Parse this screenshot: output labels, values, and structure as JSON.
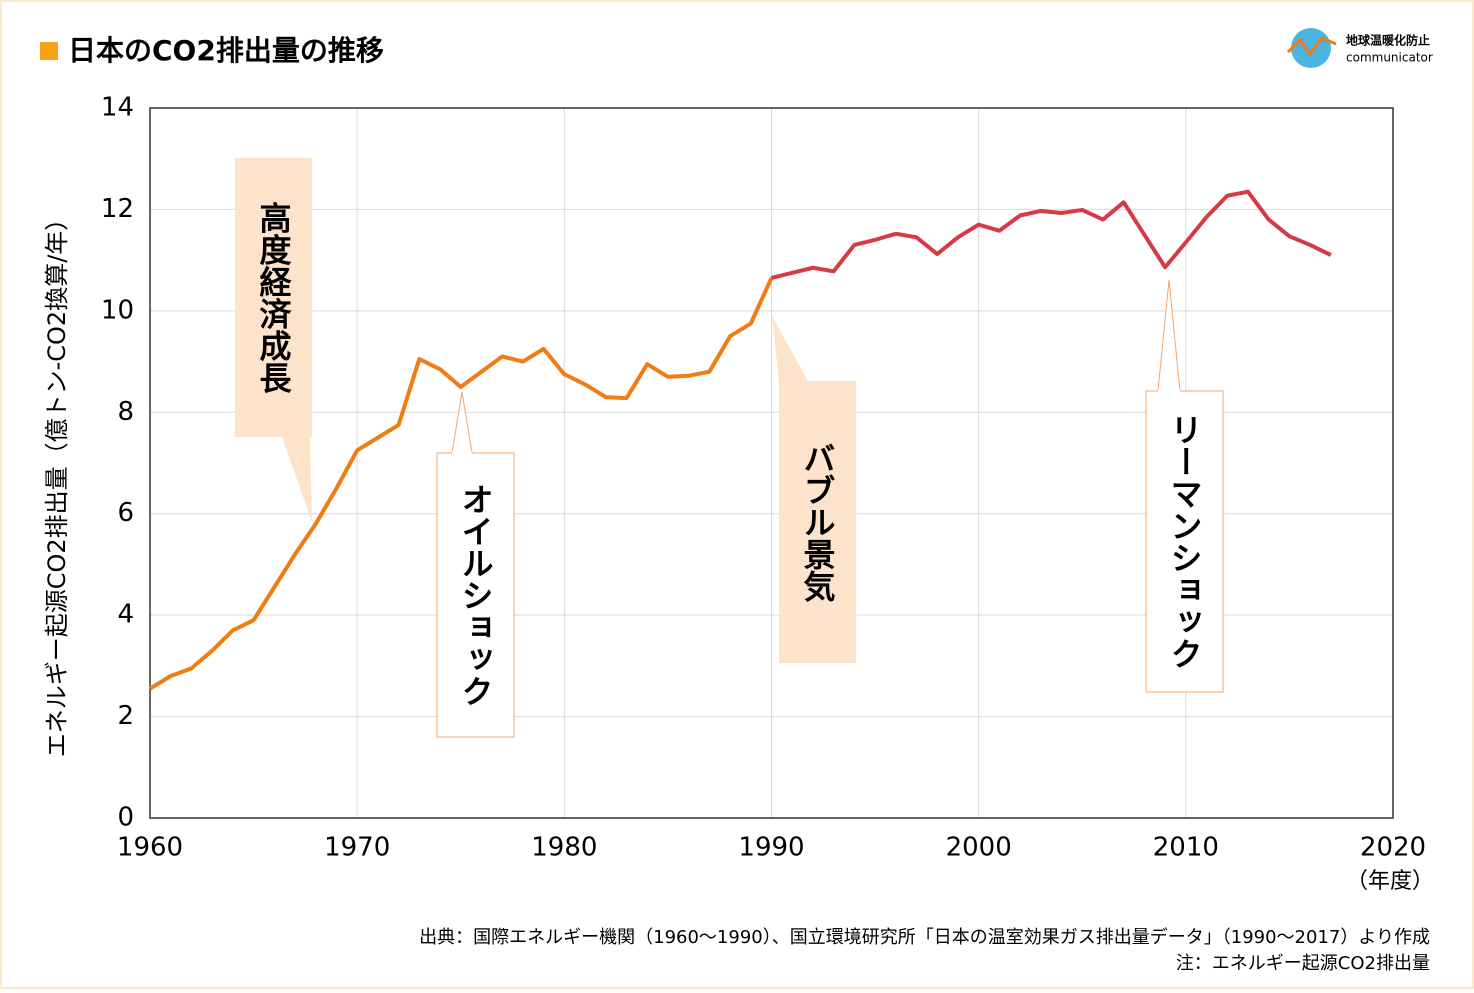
{
  "chart_data": {
    "type": "line",
    "title": "日本のCO2排出量の推移",
    "ylabel": "エネルギー起源CO2排出量（億トン-CO2換算/年）",
    "xlabel": "（年度）",
    "xlim": [
      1960,
      2020
    ],
    "xticks": [
      1960,
      1970,
      1980,
      1990,
      2000,
      2010,
      2020
    ],
    "ylim": [
      0,
      14
    ],
    "yticks": [
      0,
      2,
      4,
      6,
      8,
      10,
      12,
      14
    ],
    "grid": true,
    "series": [
      {
        "color": "#f07c14",
        "x": [
          1960,
          1961,
          1962,
          1963,
          1964,
          1965,
          1966,
          1967,
          1968,
          1969,
          1970,
          1971,
          1972,
          1973,
          1974,
          1975,
          1976,
          1977,
          1978,
          1979,
          1980,
          1981,
          1982,
          1983,
          1984,
          1985,
          1986,
          1987,
          1988,
          1989,
          1990
        ],
        "values": [
          2.55,
          2.8,
          2.95,
          3.3,
          3.7,
          3.9,
          4.55,
          5.2,
          5.8,
          6.5,
          7.25,
          7.5,
          7.75,
          9.05,
          8.85,
          8.5,
          8.8,
          9.1,
          9.0,
          9.25,
          8.75,
          8.55,
          8.3,
          8.28,
          8.95,
          8.7,
          8.72,
          8.8,
          9.5,
          9.75,
          10.65
        ]
      },
      {
        "color": "#d63a43",
        "x": [
          1990,
          1991,
          1992,
          1993,
          1994,
          1995,
          1996,
          1997,
          1998,
          1999,
          2000,
          2001,
          2002,
          2003,
          2004,
          2005,
          2006,
          2007,
          2008,
          2009,
          2010,
          2011,
          2012,
          2013,
          2014,
          2015,
          2016,
          2017
        ],
        "values": [
          10.65,
          10.75,
          10.85,
          10.78,
          11.3,
          11.4,
          11.52,
          11.45,
          11.12,
          11.45,
          11.7,
          11.58,
          11.88,
          11.97,
          11.93,
          11.99,
          11.8,
          12.14,
          11.5,
          10.86,
          11.35,
          11.85,
          12.27,
          12.35,
          11.8,
          11.47,
          11.3,
          11.1
        ]
      }
    ],
    "annotations": [
      "高度経済成長",
      "オイルショック",
      "バブル景気",
      "リーマンショック"
    ],
    "source": "出典：国際エネルギー機関（1960～1990）、国立環境研究所「日本の温室効果ガス排出量データ」（1990～2017）より作成",
    "note": "注：エネルギー起源CO2排出量"
  },
  "logo": {
    "name": "地球温暖化防止",
    "sub": "communicator"
  }
}
